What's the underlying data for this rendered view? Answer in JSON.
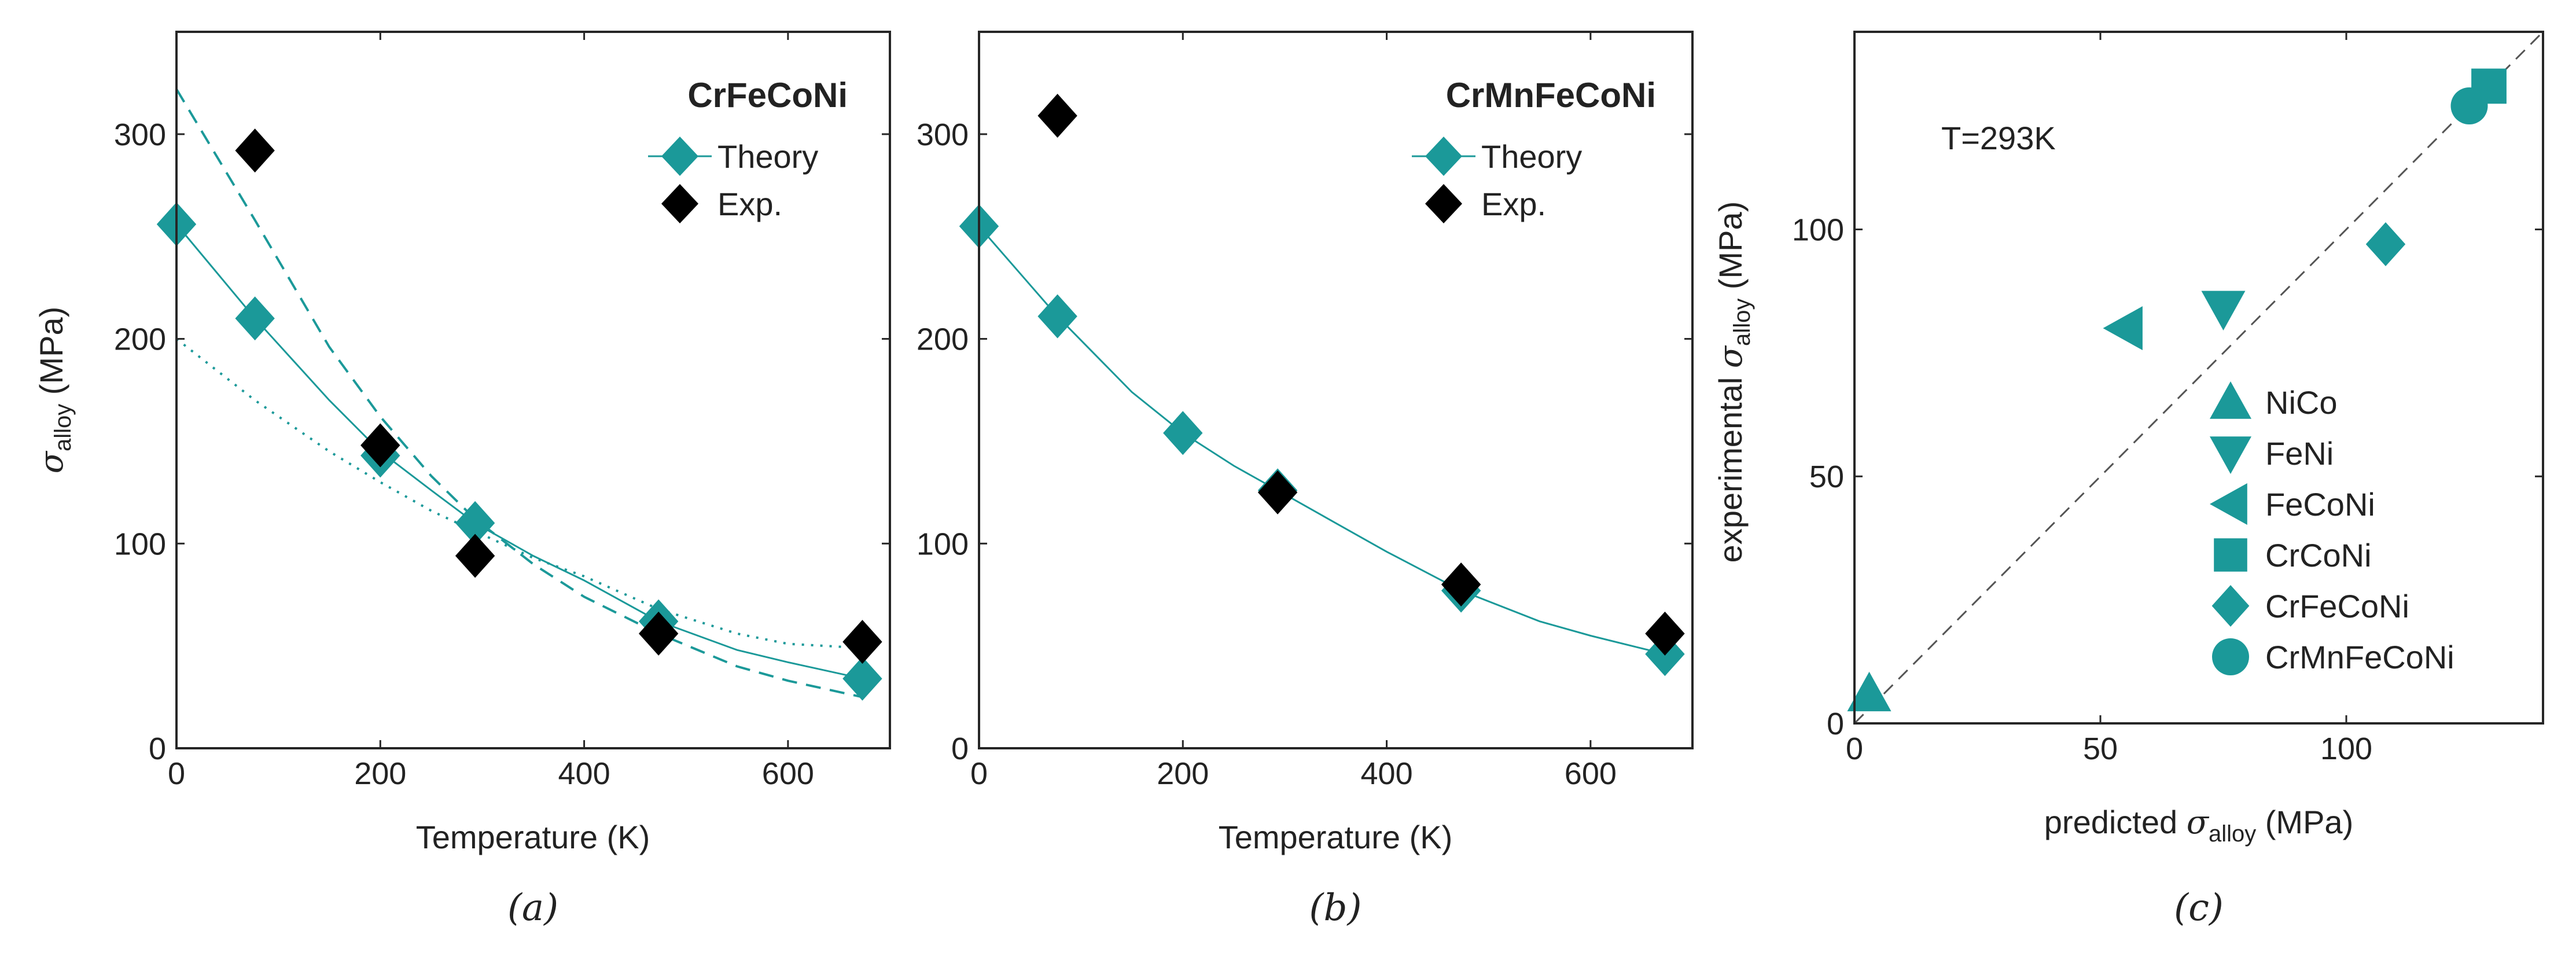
{
  "colors": {
    "teal": "#1b9999",
    "black": "#000000",
    "axis": "#262626",
    "dash": "#555555"
  },
  "panel_labels": [
    "(a)",
    "(b)",
    "(c)"
  ],
  "chart_data": [
    {
      "type": "scatter",
      "id": "a",
      "title": "CrFeCoNi",
      "xlabel": "Temperature (K)",
      "ylabel_symbol": "σ",
      "ylabel_sub": "alloy",
      "ylabel_unit": " (MPa)",
      "xlim": [
        0,
        700
      ],
      "ylim": [
        0,
        350
      ],
      "xticks": [
        0,
        200,
        400,
        600
      ],
      "yticks": [
        0,
        100,
        200,
        300
      ],
      "legend": [
        "Theory",
        "Exp."
      ],
      "series": [
        {
          "name": "Theory",
          "marker": "diamond",
          "color": "#1b9999",
          "x": [
            0,
            77,
            200,
            293,
            473,
            673
          ],
          "y": [
            256,
            210,
            143,
            110,
            62,
            34
          ]
        },
        {
          "name": "Exp.",
          "marker": "diamond",
          "color": "#000000",
          "x": [
            77,
            200,
            293,
            473,
            673
          ],
          "y": [
            292,
            148,
            94,
            56,
            52
          ]
        }
      ],
      "curves": [
        {
          "style": "solid",
          "color": "#1b9999",
          "x": [
            0,
            77,
            150,
            200,
            250,
            293,
            350,
            400,
            473,
            550,
            600,
            673
          ],
          "y": [
            256,
            210,
            170,
            145,
            126,
            110,
            94,
            82,
            62,
            48,
            42,
            34
          ]
        },
        {
          "style": "dashed",
          "color": "#1b9999",
          "x": [
            0,
            77,
            150,
            200,
            250,
            293,
            350,
            400,
            473,
            550,
            600,
            673
          ],
          "y": [
            322,
            258,
            196,
            162,
            133,
            112,
            90,
            74,
            56,
            40,
            33,
            25
          ]
        },
        {
          "style": "dotted",
          "color": "#1b9999",
          "x": [
            0,
            77,
            150,
            200,
            250,
            293,
            350,
            400,
            473,
            550,
            600,
            673
          ],
          "y": [
            200,
            170,
            145,
            130,
            116,
            106,
            93,
            84,
            68,
            56,
            51,
            49
          ]
        }
      ]
    },
    {
      "type": "scatter",
      "id": "b",
      "title": "CrMnFeCoNi",
      "xlabel": "Temperature (K)",
      "xlim": [
        0,
        700
      ],
      "ylim": [
        0,
        350
      ],
      "xticks": [
        0,
        200,
        400,
        600
      ],
      "yticks": [
        0,
        100,
        200,
        300
      ],
      "legend": [
        "Theory",
        "Exp."
      ],
      "series": [
        {
          "name": "Theory",
          "marker": "diamond",
          "color": "#1b9999",
          "x": [
            0,
            77,
            200,
            293,
            473,
            673
          ],
          "y": [
            255,
            211,
            154,
            126,
            77,
            46
          ]
        },
        {
          "name": "Exp.",
          "marker": "diamond",
          "color": "#000000",
          "x": [
            77,
            293,
            473,
            673
          ],
          "y": [
            309,
            125,
            80,
            56
          ]
        }
      ],
      "curves": [
        {
          "style": "solid",
          "color": "#1b9999",
          "x": [
            0,
            77,
            150,
            200,
            250,
            293,
            350,
            400,
            473,
            550,
            600,
            673
          ],
          "y": [
            255,
            211,
            174,
            154,
            138,
            126,
            110,
            96,
            77,
            62,
            55,
            46
          ]
        }
      ]
    },
    {
      "type": "scatter",
      "id": "c",
      "annotation": "T=293K",
      "xlabel_pre": "predicted ",
      "xlabel_symbol": "σ",
      "xlabel_sub": "alloy",
      "xlabel_unit": " (MPa)",
      "ylabel_pre": "experimental ",
      "ylabel_symbol": "σ",
      "ylabel_sub": "alloy",
      "ylabel_unit": " (MPa)",
      "xlim": [
        0,
        140
      ],
      "ylim": [
        0,
        140
      ],
      "xticks": [
        0,
        50,
        100
      ],
      "yticks": [
        0,
        50,
        100
      ],
      "reference_line": "y = x",
      "series": [
        {
          "name": "NiCo",
          "marker": "triangle-up",
          "x": 3,
          "y": 6
        },
        {
          "name": "FeNi",
          "marker": "triangle-down",
          "x": 75,
          "y": 84
        },
        {
          "name": "FeCoNi",
          "marker": "triangle-left",
          "x": 55,
          "y": 80
        },
        {
          "name": "CrCoNi",
          "marker": "square",
          "x": 129,
          "y": 129
        },
        {
          "name": "CrFeCoNi",
          "marker": "diamond",
          "x": 108,
          "y": 97
        },
        {
          "name": "CrMnFeCoNi",
          "marker": "circle",
          "x": 125,
          "y": 125
        }
      ]
    }
  ]
}
